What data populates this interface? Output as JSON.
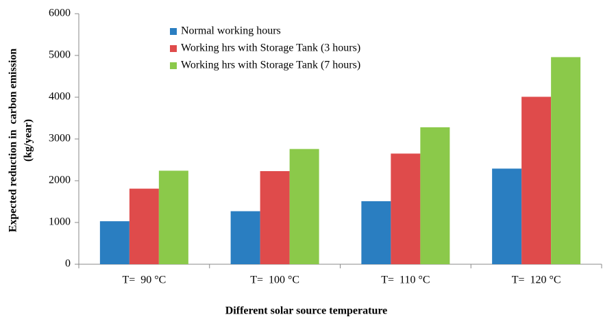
{
  "chart_data": {
    "type": "bar",
    "y_label": [
      "Expected reduction in  carbon emission",
      "(kg/year)"
    ],
    "x_label": "Different solar source temperature",
    "categories": [
      "T=  90 °C",
      "T=  100 °C",
      "T=  110 °C",
      "T=  120 °C"
    ],
    "series": [
      {
        "name": "Normal working hours",
        "color": "#2a7ec1",
        "values": [
          1030,
          1270,
          1510,
          2290
        ]
      },
      {
        "name": "Working hrs with Storage Tank (3 hours)",
        "color": "#df4b4b",
        "values": [
          1810,
          2230,
          2650,
          4010
        ]
      },
      {
        "name": "Working hrs with Storage Tank (7 hours)",
        "color": "#8bc94a",
        "values": [
          2240,
          2760,
          3280,
          4960
        ]
      }
    ],
    "ylim": [
      0,
      6000
    ],
    "yticks": [
      0,
      1000,
      2000,
      3000,
      4000,
      5000,
      6000
    ]
  }
}
